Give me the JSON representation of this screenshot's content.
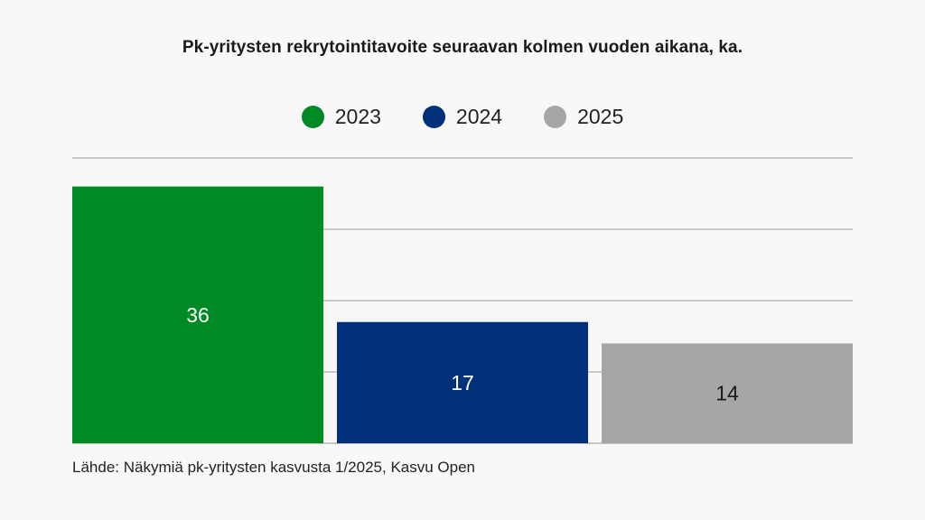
{
  "title": "Pk-yritysten rekrytointitavoite seuraavan kolmen vuoden aikana, ka.",
  "source": "Lähde: Näkymiä pk-yritysten kasvusta 1/2025, Kasvu Open",
  "chart_data": {
    "type": "bar",
    "categories": [
      "2023",
      "2024",
      "2025"
    ],
    "values": [
      36,
      17,
      14
    ],
    "value_labels": [
      "36",
      "17",
      "14"
    ],
    "colors": [
      "#008a25",
      "#00307a",
      "#a6a6a6"
    ],
    "label_colors": [
      "#ffffff",
      "#ffffff",
      "#1a1a1a"
    ],
    "ylim": [
      0,
      40
    ],
    "gridlines": [
      0,
      10,
      20,
      30,
      40
    ],
    "grid": true,
    "legend": "top-center",
    "title": "Pk-yritysten rekrytointitavoite seuraavan kolmen vuoden aikana, ka.",
    "xlabel": "",
    "ylabel": ""
  }
}
